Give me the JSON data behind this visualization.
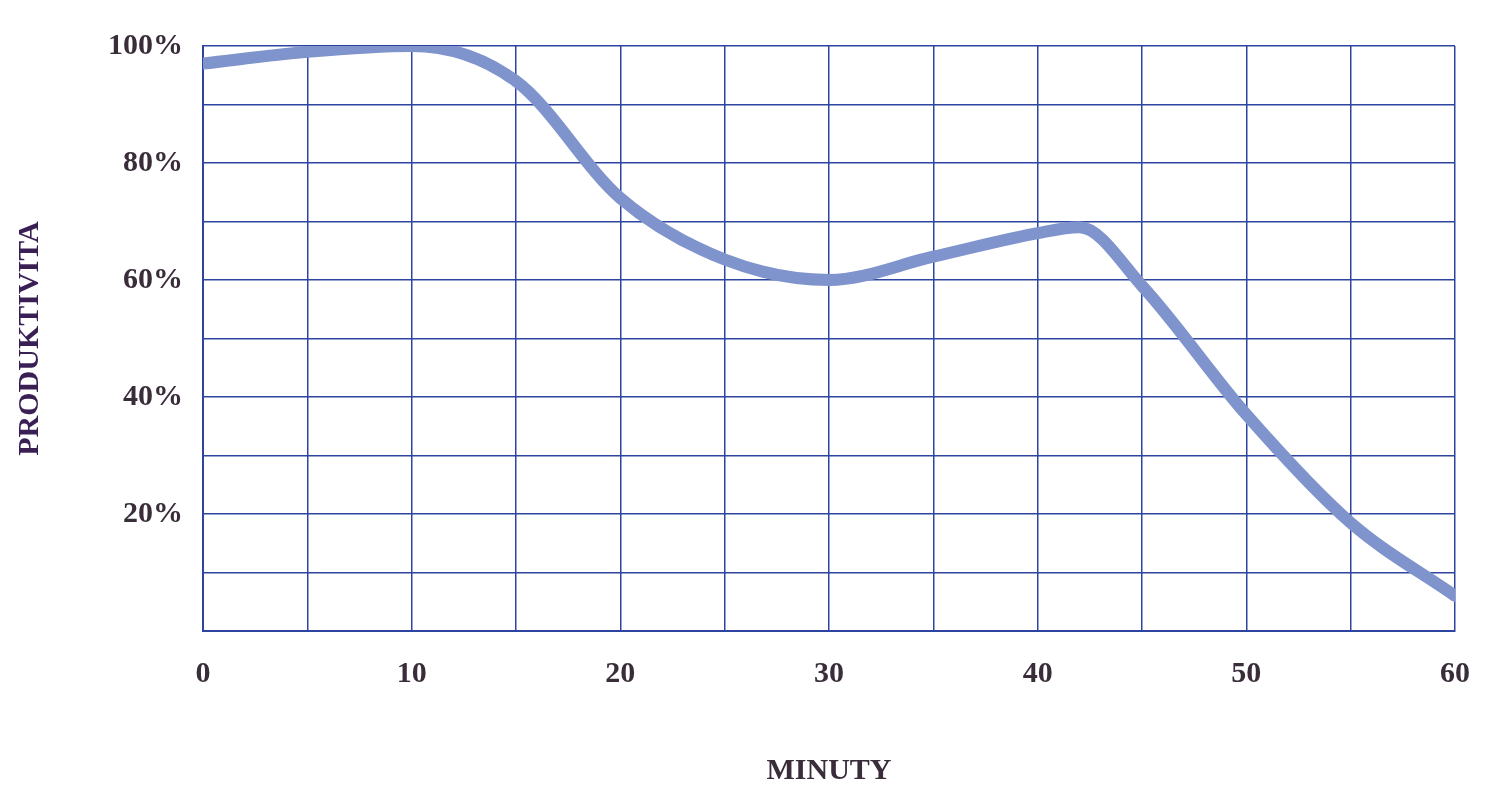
{
  "chart_data": {
    "type": "line",
    "xlabel": "MINUTY",
    "ylabel": "PRODUKTIVITA",
    "x": [
      0,
      5,
      10,
      15,
      20,
      25,
      30,
      35,
      40,
      42,
      45,
      50,
      55,
      60
    ],
    "series": [
      {
        "color": "#7f93cc",
        "values": [
          97,
          99,
          100,
          94,
          74,
          63.5,
          60,
          64,
          68,
          69,
          59,
          37,
          18.5,
          6
        ]
      }
    ],
    "xlim": [
      0,
      60
    ],
    "xticks": [
      0,
      {
        "value": 5,
        "label": null
      },
      10,
      {
        "value": 15,
        "label": null
      },
      20,
      {
        "value": 25,
        "label": null
      },
      30,
      {
        "value": 35,
        "label": null
      },
      40,
      {
        "value": 45,
        "label": null
      },
      50,
      {
        "value": 55,
        "label": null
      },
      60
    ],
    "ylim": [
      0,
      100
    ],
    "yticks": [
      {
        "value": 0,
        "label": null
      },
      {
        "value": 10,
        "label": null
      },
      {
        "value": 20,
        "label": "20%"
      },
      {
        "value": 30,
        "label": null
      },
      {
        "value": 40,
        "label": "40%"
      },
      {
        "value": 50,
        "label": null
      },
      {
        "value": 60,
        "label": "60%"
      },
      {
        "value": 70,
        "label": null
      },
      {
        "value": 80,
        "label": "80%"
      },
      {
        "value": 90,
        "label": null
      },
      {
        "value": 100,
        "label": "100%"
      }
    ],
    "grid": true,
    "legend": false,
    "marker": "none",
    "line_style": "solid"
  }
}
